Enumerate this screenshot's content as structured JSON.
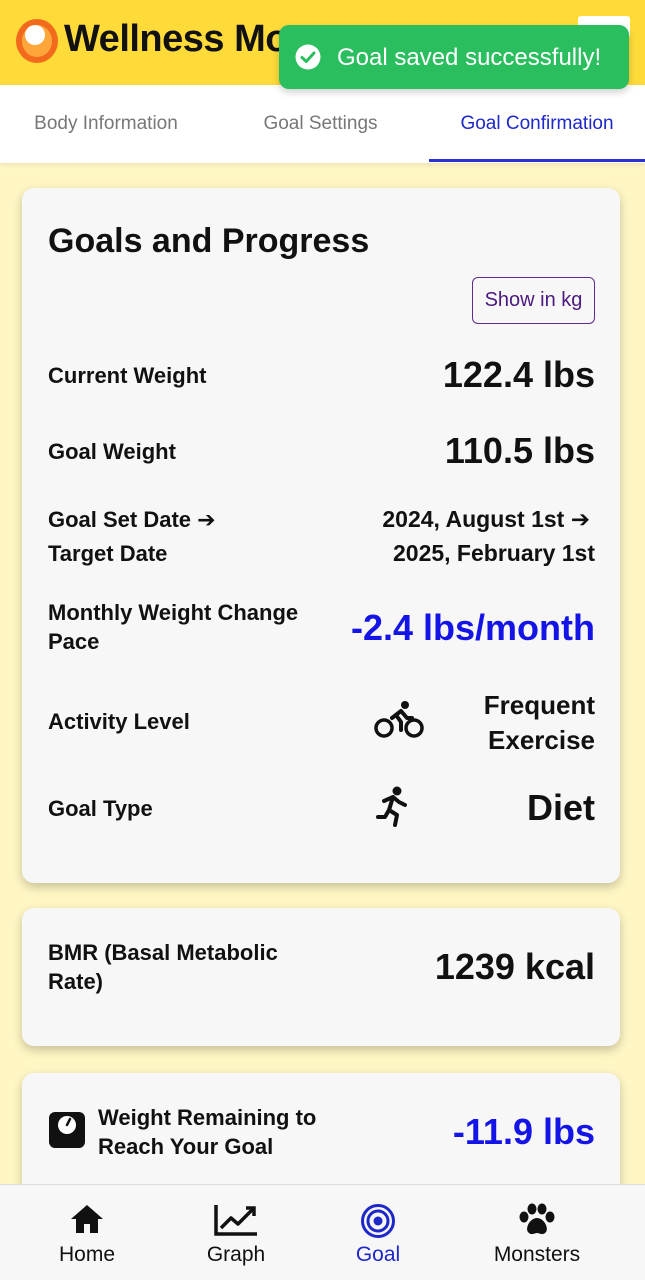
{
  "header": {
    "app_title": "Wellness Monsters",
    "logo_icon": "egg-logo-icon",
    "menu_icon": "menu-icon"
  },
  "toast": {
    "message": "Goal saved successfully!",
    "icon": "check-circle-icon",
    "color": "#2ABE5F"
  },
  "tabs": [
    {
      "label": "Body Information",
      "active": false
    },
    {
      "label": "Goal Settings",
      "active": false
    },
    {
      "label": "Goal Confirmation",
      "active": true
    }
  ],
  "goals_card": {
    "title": "Goals and Progress",
    "unit_toggle_label": "Show in kg",
    "current_weight": {
      "label": "Current Weight",
      "value": "122.4 lbs"
    },
    "goal_weight": {
      "label": "Goal Weight",
      "value": "110.5 lbs"
    },
    "dates": {
      "label_line1": "Goal Set Date ➔",
      "label_line2": "Target Date",
      "value_line1": "2024, August 1st ➔",
      "value_line2": "2025, February 1st"
    },
    "pace": {
      "label": "Monthly Weight Change Pace",
      "value": "-2.4 lbs/month"
    },
    "activity": {
      "label": "Activity Level",
      "icon": "bicycle-icon",
      "value_line1": "Frequent",
      "value_line2": "Exercise"
    },
    "goal_type": {
      "label": "Goal Type",
      "icon": "running-icon",
      "value": "Diet"
    }
  },
  "bmr_card": {
    "label": "BMR (Basal Metabolic Rate)",
    "value": "1239 kcal"
  },
  "remaining_card": {
    "icon": "scale-icon",
    "label": "Weight Remaining to Reach Your Goal",
    "value": "-11.9 lbs"
  },
  "bottom_nav": [
    {
      "label": "Home",
      "icon": "home-icon",
      "active": false
    },
    {
      "label": "Graph",
      "icon": "chart-icon",
      "active": false
    },
    {
      "label": "Goal",
      "icon": "target-icon",
      "active": true
    },
    {
      "label": "Monsters",
      "icon": "paw-icon",
      "active": false
    }
  ],
  "colors": {
    "header": "#FFDB3A",
    "background": "#FFF6C4",
    "accent": "#1E28C9",
    "highlight_value": "#1414E6"
  }
}
